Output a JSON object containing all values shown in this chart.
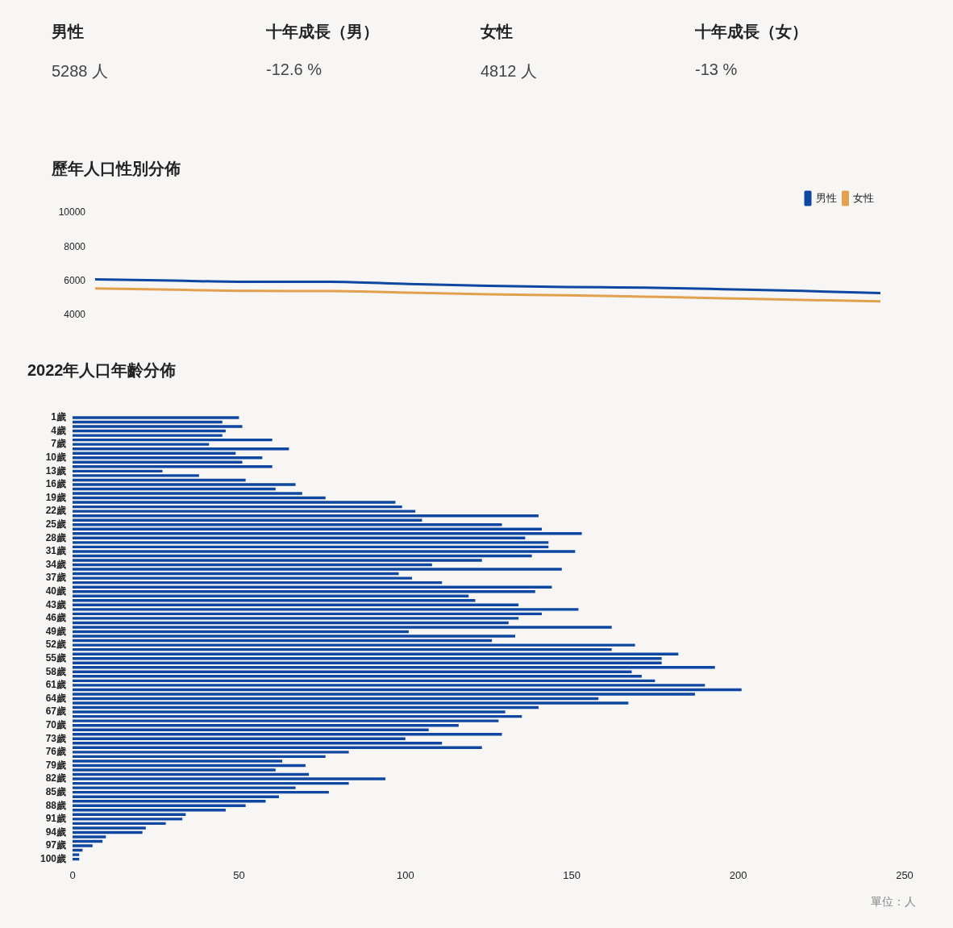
{
  "chart_data": [
    {
      "type": "other",
      "annotations": [
        "男性",
        "5288 人",
        "十年成長（男）",
        "-12.6 %",
        "女性",
        "4812 人",
        "十年成長（女）",
        "-13 %"
      ]
    },
    {
      "type": "line",
      "title": "歷年人口性別分佈",
      "categories": [
        null,
        null,
        null,
        null,
        null,
        null,
        null,
        null,
        null,
        null,
        null
      ],
      "series": [
        {
          "name": "男性",
          "color": "#0d47a1",
          "values": [
            6100,
            6020,
            5950,
            5960,
            5820,
            5720,
            5650,
            5610,
            5520,
            5420,
            5288
          ]
        },
        {
          "name": "女性",
          "color": "#e3a04e",
          "values": [
            5560,
            5490,
            5420,
            5410,
            5320,
            5220,
            5160,
            5080,
            4990,
            4890,
            4812
          ]
        }
      ],
      "ylim": [
        4000,
        10000
      ],
      "yticks": [
        4000,
        6000,
        8000,
        10000
      ],
      "legend": "top right",
      "marker": "none",
      "tick_labels": "y"
    },
    {
      "type": "bar",
      "orientation": "horizontal",
      "title": "2022年人口年齡分佈",
      "categories": [
        "1歲",
        null,
        null,
        "4歲",
        null,
        null,
        "7歲",
        null,
        null,
        "10歲",
        null,
        null,
        "13歲",
        null,
        null,
        "16歲",
        null,
        null,
        "19歲",
        null,
        null,
        "22歲",
        null,
        null,
        "25歲",
        null,
        null,
        "28歲",
        null,
        null,
        "31歲",
        null,
        null,
        "34歲",
        null,
        null,
        "37歲",
        null,
        null,
        "40歲",
        null,
        null,
        "43歲",
        null,
        null,
        "46歲",
        null,
        null,
        "49歲",
        null,
        null,
        "52歲",
        null,
        null,
        "55歲",
        null,
        null,
        "58歲",
        null,
        null,
        "61歲",
        null,
        null,
        "64歲",
        null,
        null,
        "67歲",
        null,
        null,
        "70歲",
        null,
        null,
        "73歲",
        null,
        null,
        "76歲",
        null,
        null,
        "79歲",
        null,
        null,
        "82歲",
        null,
        null,
        "85歲",
        null,
        null,
        "88歲",
        null,
        null,
        "91歲",
        null,
        null,
        "94歲",
        null,
        null,
        "97歲",
        null,
        null,
        "100歲"
      ],
      "values": [
        50,
        45,
        51,
        46,
        45,
        60,
        41,
        65,
        49,
        57,
        51,
        60,
        27,
        38,
        52,
        67,
        61,
        69,
        76,
        97,
        99,
        103,
        140,
        105,
        129,
        141,
        153,
        136,
        143,
        143,
        151,
        138,
        123,
        108,
        147,
        98,
        102,
        111,
        144,
        139,
        119,
        121,
        134,
        152,
        141,
        134,
        131,
        162,
        101,
        133,
        126,
        169,
        162,
        182,
        177,
        177,
        193,
        168,
        171,
        175,
        190,
        201,
        187,
        158,
        167,
        140,
        130,
        135,
        128,
        116,
        107,
        129,
        100,
        111,
        123,
        83,
        76,
        63,
        70,
        61,
        71,
        94,
        83,
        67,
        77,
        62,
        58,
        52,
        46,
        34,
        33,
        28,
        22,
        21,
        10,
        9,
        6,
        3,
        2,
        2
      ],
      "color": "#0d47a1",
      "xlim": [
        0,
        250
      ],
      "xticks": [
        0,
        50,
        100,
        150,
        200,
        250
      ],
      "annotations": [
        "單位：人"
      ]
    }
  ]
}
